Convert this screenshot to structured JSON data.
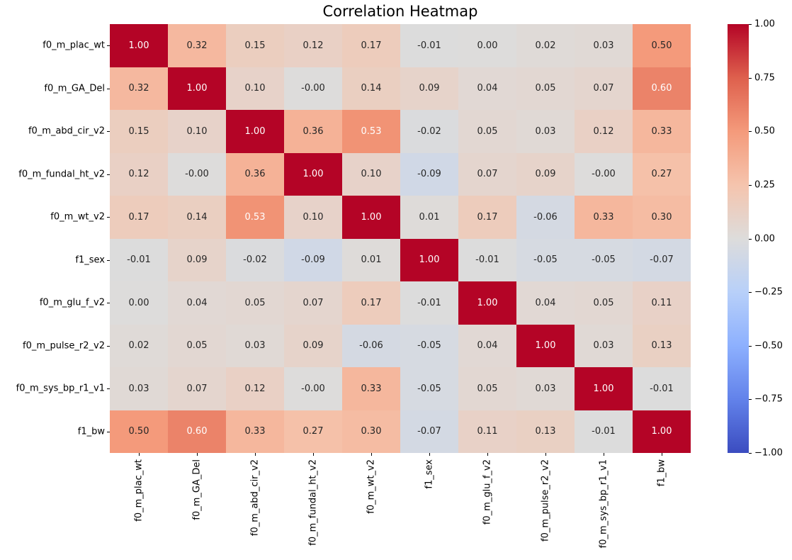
{
  "chart_data": {
    "type": "heatmap",
    "title": "Correlation Heatmap",
    "variables": [
      "f0_m_plac_wt",
      "f0_m_GA_Del",
      "f0_m_abd_cir_v2",
      "f0_m_fundal_ht_v2",
      "f0_m_wt_v2",
      "f1_sex",
      "f0_m_glu_f_v2",
      "f0_m_pulse_r2_v2",
      "f0_m_sys_bp_r1_v1",
      "f1_bw"
    ],
    "matrix": [
      [
        "1.00",
        "0.32",
        "0.15",
        "0.12",
        "0.17",
        "-0.01",
        "0.00",
        "0.02",
        "0.03",
        "0.50"
      ],
      [
        "0.32",
        "1.00",
        "0.10",
        "-0.00",
        "0.14",
        "0.09",
        "0.04",
        "0.05",
        "0.07",
        "0.60"
      ],
      [
        "0.15",
        "0.10",
        "1.00",
        "0.36",
        "0.53",
        "-0.02",
        "0.05",
        "0.03",
        "0.12",
        "0.33"
      ],
      [
        "0.12",
        "-0.00",
        "0.36",
        "1.00",
        "0.10",
        "-0.09",
        "0.07",
        "0.09",
        "-0.00",
        "0.27"
      ],
      [
        "0.17",
        "0.14",
        "0.53",
        "0.10",
        "1.00",
        "0.01",
        "0.17",
        "-0.06",
        "0.33",
        "0.30"
      ],
      [
        "-0.01",
        "0.09",
        "-0.02",
        "-0.09",
        "0.01",
        "1.00",
        "-0.01",
        "-0.05",
        "-0.05",
        "-0.07"
      ],
      [
        "0.00",
        "0.04",
        "0.05",
        "0.07",
        "0.17",
        "-0.01",
        "1.00",
        "0.04",
        "0.05",
        "0.11"
      ],
      [
        "0.02",
        "0.05",
        "0.03",
        "0.09",
        "-0.06",
        "-0.05",
        "0.04",
        "1.00",
        "0.03",
        "0.13"
      ],
      [
        "0.03",
        "0.07",
        "0.12",
        "-0.00",
        "0.33",
        "-0.05",
        "0.05",
        "0.03",
        "1.00",
        "-0.01"
      ],
      [
        "0.50",
        "0.60",
        "0.33",
        "0.27",
        "0.30",
        "-0.07",
        "0.11",
        "0.13",
        "-0.01",
        "1.00"
      ]
    ],
    "value_range": [
      -1,
      1
    ],
    "colormap": "coolwarm",
    "colormap_stops": [
      "#3b4cc0",
      "#6282ea",
      "#8db0fe",
      "#b8d0f9",
      "#dddcdb",
      "#f5c4ad",
      "#f49a7b",
      "#de604d",
      "#b40426"
    ],
    "colorbar_ticks": [
      "1.00",
      "0.75",
      "0.50",
      "0.25",
      "0.00",
      "−0.25",
      "−0.50",
      "−0.75",
      "−1.00"
    ],
    "annotation_colors": {
      "dark": "#262626",
      "light": "#ffffff"
    },
    "colorbar_position": "right",
    "grid": false
  }
}
